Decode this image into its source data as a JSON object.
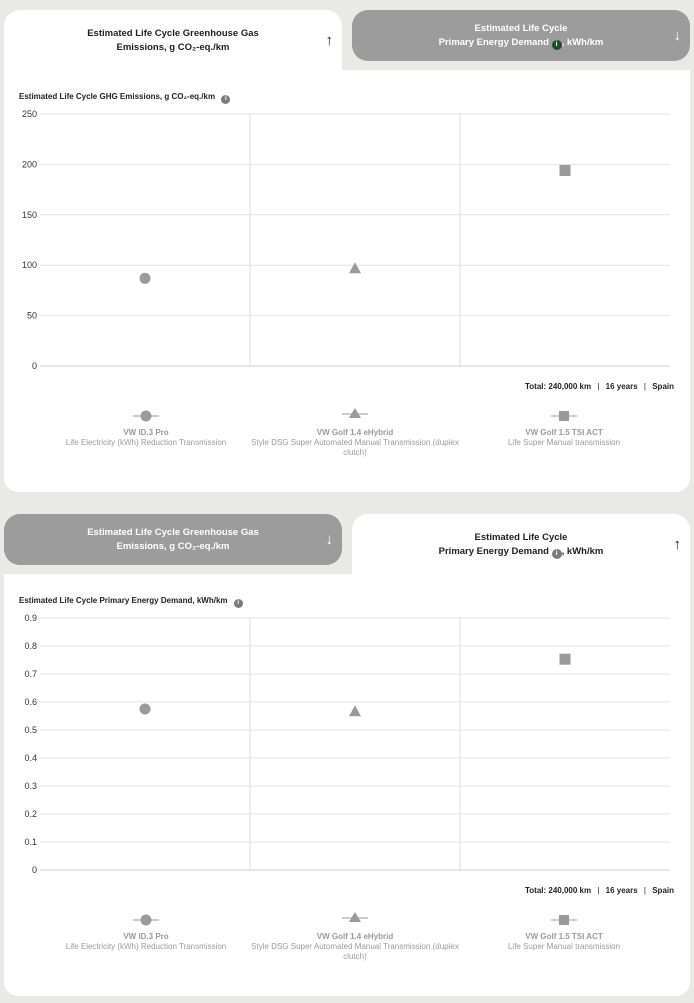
{
  "tabs": {
    "ghg_line1": "Estimated Life Cycle Greenhouse Gas",
    "ghg_line2": "Emissions, g CO₂-eq./km",
    "ped_line1": "Estimated Life Cycle",
    "ped_line2a": "Primary Energy Demand",
    "ped_line2b": ", kWh/km",
    "arrow_up": "↑",
    "arrow_down": "↓",
    "info": "i"
  },
  "totals": {
    "label": "Total:",
    "distance": "240,000 km",
    "years": "16 years",
    "country": "Spain",
    "sep": "|"
  },
  "legend": [
    {
      "symbol": "circle",
      "name": "VW ID.3 Pro",
      "desc": "Life Electricity (kWh) Reduction Transmission"
    },
    {
      "symbol": "triangle",
      "name": "VW Golf 1.4 eHybrid",
      "desc": "Style DSG Super Automated Manual Transmission (duplex clutch)"
    },
    {
      "symbol": "square",
      "name": "VW Golf 1.5 TSI ACT",
      "desc": "Life Super Manual transmission"
    }
  ],
  "chart_data": [
    {
      "type": "scatter",
      "title": "Estimated Life Cycle GHG Emissions, g CO₂-eq./km",
      "categories": [
        "VW ID.3 Pro",
        "VW Golf 1.4 eHybrid",
        "VW Golf 1.5 TSI ACT"
      ],
      "values": [
        87,
        97,
        194
      ],
      "ylim": [
        0,
        250
      ],
      "yticks": [
        "0",
        "50",
        "100",
        "150",
        "200",
        "250"
      ],
      "grid": true,
      "color": "#9a9a9a"
    },
    {
      "type": "scatter",
      "title": "Estimated Life Cycle Primary Energy Demand, kWh/km",
      "categories": [
        "VW ID.3 Pro",
        "VW Golf 1.4 eHybrid",
        "VW Golf 1.5 TSI ACT"
      ],
      "values": [
        0.575,
        0.567,
        0.753
      ],
      "ylim": [
        0,
        0.9
      ],
      "yticks": [
        "0",
        "0.1",
        "0.2",
        "0.3",
        "0.4",
        "0.5",
        "0.6",
        "0.7",
        "0.8",
        "0.9"
      ],
      "grid": true,
      "color": "#9a9a9a"
    }
  ]
}
